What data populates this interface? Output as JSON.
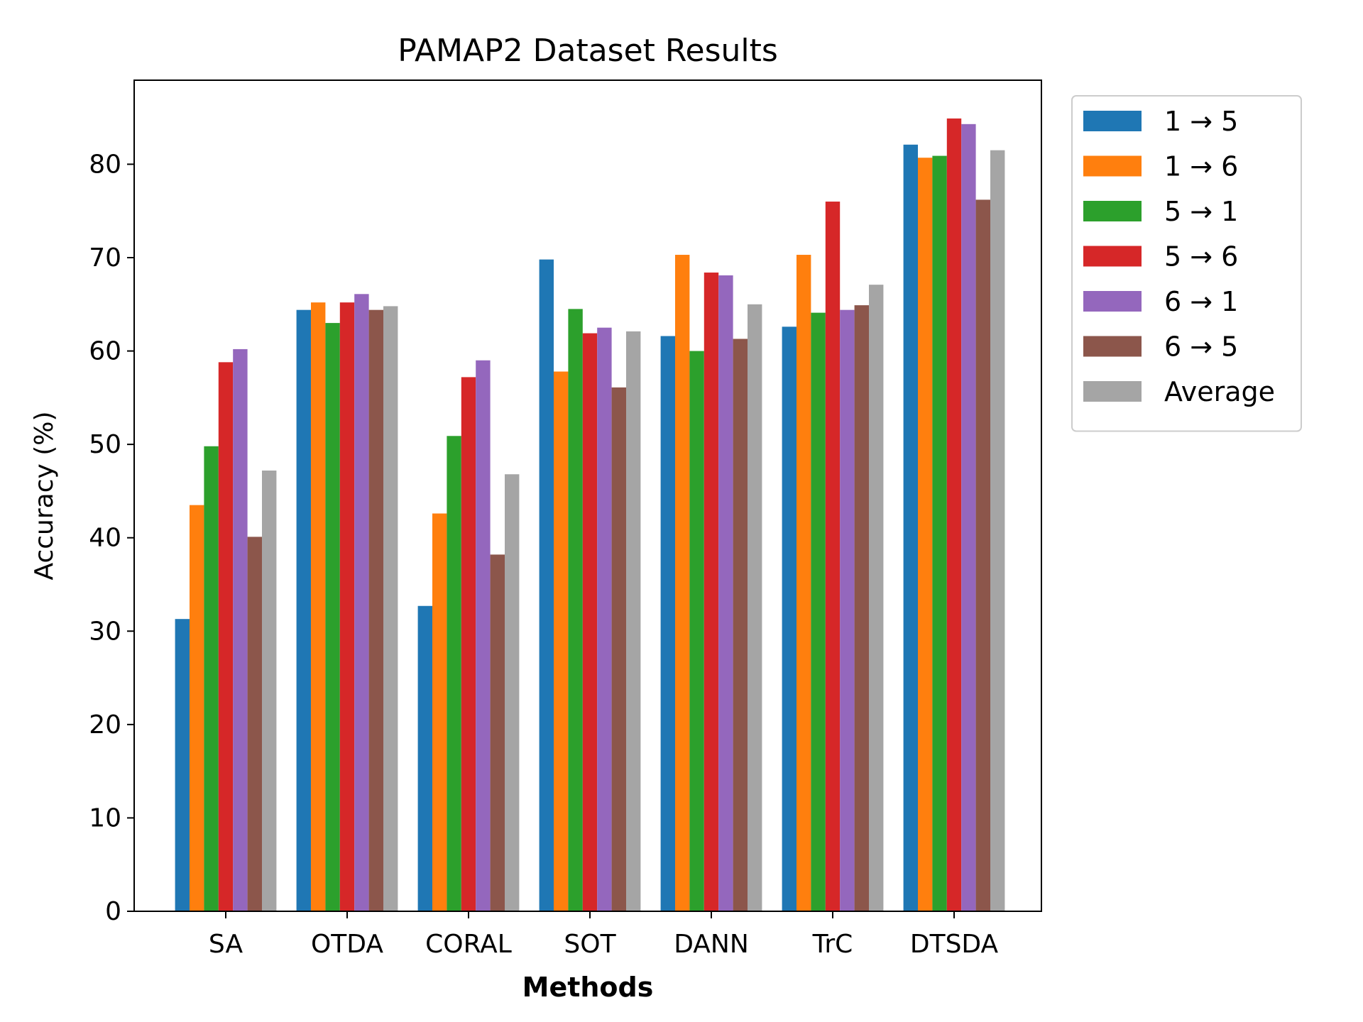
{
  "chart_data": {
    "type": "bar",
    "title": "PAMAP2 Dataset Results",
    "xlabel": "Methods",
    "ylabel": "Accuracy (%)",
    "ylim": [
      0,
      89
    ],
    "yticks": [
      0,
      10,
      20,
      30,
      40,
      50,
      60,
      70,
      80
    ],
    "grid": false,
    "legend_position": "outside-top-right",
    "categories": [
      "SA",
      "OTDA",
      "CORAL",
      "SOT",
      "DANN",
      "TrC",
      "DTSDA"
    ],
    "series": [
      {
        "name": "1 → 5",
        "color": "#1f77b4",
        "values": [
          31.3,
          64.4,
          32.7,
          69.8,
          61.6,
          62.6,
          82.1
        ]
      },
      {
        "name": "1 → 6",
        "color": "#ff7f0e",
        "values": [
          43.5,
          65.2,
          42.6,
          57.8,
          70.3,
          70.3,
          80.7
        ]
      },
      {
        "name": "5 → 1",
        "color": "#2ca02c",
        "values": [
          49.8,
          63.0,
          50.9,
          64.5,
          60.0,
          64.1,
          80.9
        ]
      },
      {
        "name": "5 → 6",
        "color": "#d62728",
        "values": [
          58.8,
          65.2,
          57.2,
          61.9,
          68.4,
          76.0,
          84.9
        ]
      },
      {
        "name": "6 → 1",
        "color": "#9467bd",
        "values": [
          60.2,
          66.1,
          59.0,
          62.5,
          68.1,
          64.4,
          84.3
        ]
      },
      {
        "name": "6 → 5",
        "color": "#8c564b",
        "values": [
          40.1,
          64.4,
          38.2,
          56.1,
          61.3,
          64.9,
          76.2
        ]
      },
      {
        "name": "Average",
        "color": "#a5a5a5",
        "values": [
          47.2,
          64.8,
          46.8,
          62.1,
          65.0,
          67.1,
          81.5
        ]
      }
    ]
  }
}
